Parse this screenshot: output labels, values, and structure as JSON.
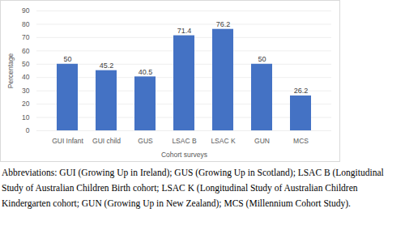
{
  "chart_data": {
    "type": "bar",
    "categories": [
      "GUI Infant",
      "GUI child",
      "GUS",
      "LSAC B",
      "LSAC K",
      "GUN",
      "MCS"
    ],
    "values": [
      50,
      45.2,
      40.5,
      71.4,
      76.2,
      50,
      26.2
    ],
    "color": "#4472c4",
    "xlabel": "Cohort surveys",
    "ylabel": "Percentage",
    "ylim": [
      0,
      90
    ],
    "yticks": [
      0,
      10,
      20,
      30,
      40,
      50,
      60,
      70,
      80,
      90
    ],
    "grid": true,
    "data_labels": true,
    "caption": "Abbreviations: GUI (Growing Up in Ireland); GUS (Growing Up in Scotland); LSAC B (Longitudinal Study of Australian Children Birth cohort; LSAC K (Longitudinal Study of Australian Children Kindergarten cohort; GUN (Growing Up in New Zealand); MCS (Millennium Cohort Study)."
  }
}
